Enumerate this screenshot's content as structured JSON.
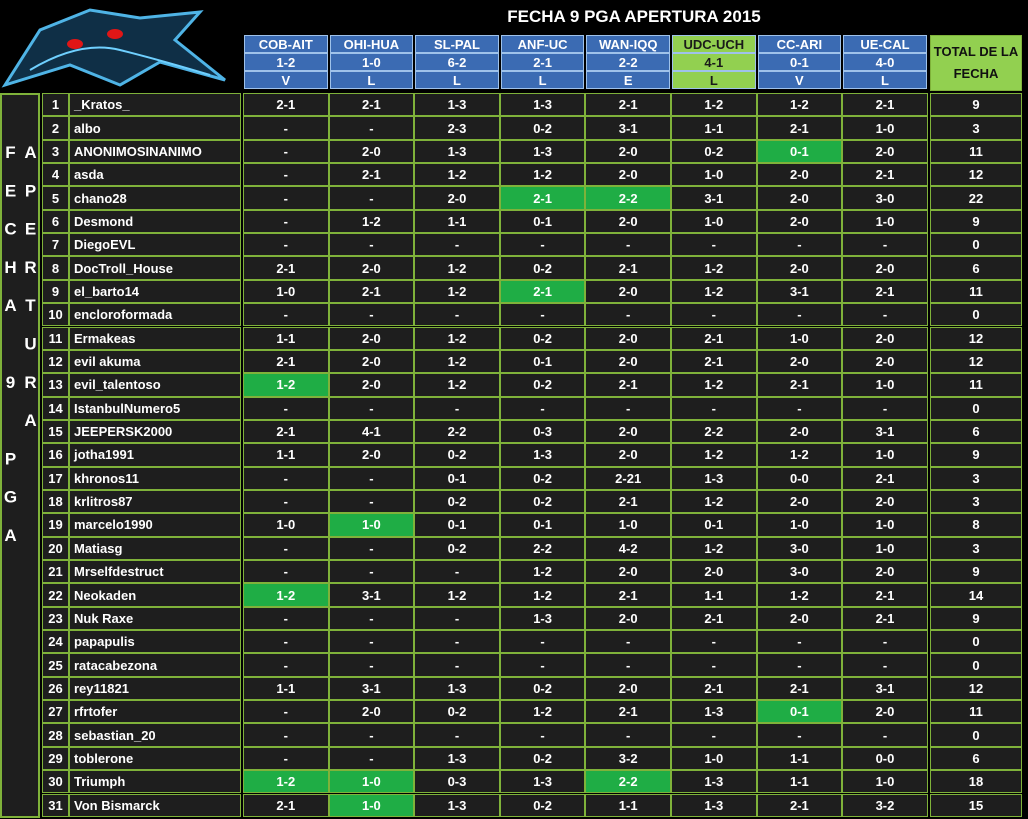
{
  "title": "FECHA 9 PGA APERTURA 2015",
  "side_label": "FECHA 9 PGA APERTURA",
  "total_header": "TOTAL DE LA FECHA",
  "matches": [
    {
      "name": "COB-AIT",
      "score": "1-2",
      "result": "V"
    },
    {
      "name": "OHI-HUA",
      "score": "1-0",
      "result": "L"
    },
    {
      "name": "SL-PAL",
      "score": "6-2",
      "result": "L"
    },
    {
      "name": "ANF-UC",
      "score": "2-1",
      "result": "L"
    },
    {
      "name": "WAN-IQQ",
      "score": "2-2",
      "result": "E"
    },
    {
      "name": "UDC-UCH",
      "score": "4-1",
      "result": "L",
      "highlight": true
    },
    {
      "name": "CC-ARI",
      "score": "0-1",
      "result": "V"
    },
    {
      "name": "UE-CAL",
      "score": "4-0",
      "result": "L"
    }
  ],
  "rows": [
    {
      "num": 1,
      "name": "_Kratos_",
      "picks": [
        "2-1",
        "2-1",
        "1-3",
        "1-3",
        "2-1",
        "1-2",
        "1-2",
        "2-1"
      ],
      "total": 9
    },
    {
      "num": 2,
      "name": "albo",
      "picks": [
        "-",
        "-",
        "2-3",
        "0-2",
        "3-1",
        "1-1",
        "2-1",
        "1-0"
      ],
      "total": 3
    },
    {
      "num": 3,
      "name": "ANONIMOSINANIMO",
      "picks": [
        "-",
        "2-0",
        "1-3",
        "1-3",
        "2-0",
        "0-2",
        "0-1",
        "2-0"
      ],
      "total": 11,
      "highlight": [
        6
      ]
    },
    {
      "num": 4,
      "name": "asda",
      "picks": [
        "-",
        "2-1",
        "1-2",
        "1-2",
        "2-0",
        "1-0",
        "2-0",
        "2-1"
      ],
      "total": 12
    },
    {
      "num": 5,
      "name": "chano28",
      "picks": [
        "-",
        "-",
        "2-0",
        "2-1",
        "2-2",
        "3-1",
        "2-0",
        "3-0"
      ],
      "total": 22,
      "highlight": [
        3,
        4
      ]
    },
    {
      "num": 6,
      "name": "Desmond",
      "picks": [
        "-",
        "1-2",
        "1-1",
        "0-1",
        "2-0",
        "1-0",
        "2-0",
        "1-0"
      ],
      "total": 9
    },
    {
      "num": 7,
      "name": "DiegoEVL",
      "picks": [
        "-",
        "-",
        "-",
        "-",
        "-",
        "-",
        "-",
        "-"
      ],
      "total": 0
    },
    {
      "num": 8,
      "name": "DocTroll_House",
      "picks": [
        "2-1",
        "2-0",
        "1-2",
        "0-2",
        "2-1",
        "1-2",
        "2-0",
        "2-0"
      ],
      "total": 6
    },
    {
      "num": 9,
      "name": "el_barto14",
      "picks": [
        "1-0",
        "2-1",
        "1-2",
        "2-1",
        "2-0",
        "1-2",
        "3-1",
        "2-1"
      ],
      "total": 11,
      "highlight": [
        3
      ]
    },
    {
      "num": 10,
      "name": "encloroformada",
      "picks": [
        "-",
        "-",
        "-",
        "-",
        "-",
        "-",
        "-",
        "-"
      ],
      "total": 0
    },
    {
      "num": 11,
      "name": "Ermakeas",
      "picks": [
        "1-1",
        "2-0",
        "1-2",
        "0-2",
        "2-0",
        "2-1",
        "1-0",
        "2-0"
      ],
      "total": 12
    },
    {
      "num": 12,
      "name": "evil akuma",
      "picks": [
        "2-1",
        "2-0",
        "1-2",
        "0-1",
        "2-0",
        "2-1",
        "2-0",
        "2-0"
      ],
      "total": 12
    },
    {
      "num": 13,
      "name": "evil_talentoso",
      "picks": [
        "1-2",
        "2-0",
        "1-2",
        "0-2",
        "2-1",
        "1-2",
        "2-1",
        "1-0"
      ],
      "total": 11,
      "highlight": [
        0
      ]
    },
    {
      "num": 14,
      "name": "IstanbulNumero5",
      "picks": [
        "-",
        "-",
        "-",
        "-",
        "-",
        "-",
        "-",
        "-"
      ],
      "total": 0
    },
    {
      "num": 15,
      "name": "JEEPERSK2000",
      "picks": [
        "2-1",
        "4-1",
        "2-2",
        "0-3",
        "2-0",
        "2-2",
        "2-0",
        "3-1"
      ],
      "total": 6
    },
    {
      "num": 16,
      "name": "jotha1991",
      "picks": [
        "1-1",
        "2-0",
        "0-2",
        "1-3",
        "2-0",
        "1-2",
        "1-2",
        "1-0"
      ],
      "total": 9
    },
    {
      "num": 17,
      "name": "khronos11",
      "picks": [
        "-",
        "-",
        "0-1",
        "0-2",
        "2-21",
        "1-3",
        "0-0",
        "2-1"
      ],
      "total": 3
    },
    {
      "num": 18,
      "name": "krlitros87",
      "picks": [
        "-",
        "-",
        "0-2",
        "0-2",
        "2-1",
        "1-2",
        "2-0",
        "2-0"
      ],
      "total": 3
    },
    {
      "num": 19,
      "name": "marcelo1990",
      "picks": [
        "1-0",
        "1-0",
        "0-1",
        "0-1",
        "1-0",
        "0-1",
        "1-0",
        "1-0"
      ],
      "total": 8,
      "highlight": [
        1
      ]
    },
    {
      "num": 20,
      "name": "Matiasg",
      "picks": [
        "-",
        "-",
        "0-2",
        "2-2",
        "4-2",
        "1-2",
        "3-0",
        "1-0"
      ],
      "total": 3
    },
    {
      "num": 21,
      "name": "Mrselfdestruct",
      "picks": [
        "-",
        "-",
        "-",
        "1-2",
        "2-0",
        "2-0",
        "3-0",
        "2-0"
      ],
      "total": 9
    },
    {
      "num": 22,
      "name": "Neokaden",
      "picks": [
        "1-2",
        "3-1",
        "1-2",
        "1-2",
        "2-1",
        "1-1",
        "1-2",
        "2-1"
      ],
      "total": 14,
      "highlight": [
        0
      ]
    },
    {
      "num": 23,
      "name": "Nuk Raxe",
      "picks": [
        "-",
        "-",
        "-",
        "1-3",
        "2-0",
        "2-1",
        "2-0",
        "2-1"
      ],
      "total": 9
    },
    {
      "num": 24,
      "name": "papapulis",
      "picks": [
        "-",
        "-",
        "-",
        "-",
        "-",
        "-",
        "-",
        "-"
      ],
      "total": 0
    },
    {
      "num": 25,
      "name": "ratacabezona",
      "picks": [
        "-",
        "-",
        "-",
        "-",
        "-",
        "-",
        "-",
        "-"
      ],
      "total": 0
    },
    {
      "num": 26,
      "name": "rey11821",
      "picks": [
        "1-1",
        "3-1",
        "1-3",
        "0-2",
        "2-0",
        "2-1",
        "2-1",
        "3-1"
      ],
      "total": 12
    },
    {
      "num": 27,
      "name": "rfrtofer",
      "picks": [
        "-",
        "2-0",
        "0-2",
        "1-2",
        "2-1",
        "1-3",
        "0-1",
        "2-0"
      ],
      "total": 11,
      "highlight": [
        6
      ]
    },
    {
      "num": 28,
      "name": "sebastian_20",
      "picks": [
        "-",
        "-",
        "-",
        "-",
        "-",
        "-",
        "-",
        "-"
      ],
      "total": 0
    },
    {
      "num": 29,
      "name": "toblerone",
      "picks": [
        "-",
        "-",
        "1-3",
        "0-2",
        "3-2",
        "1-0",
        "1-1",
        "0-0"
      ],
      "total": 6
    },
    {
      "num": 30,
      "name": "Triumph",
      "picks": [
        "1-2",
        "1-0",
        "0-3",
        "1-3",
        "2-2",
        "1-3",
        "1-1",
        "1-0"
      ],
      "total": 18,
      "highlight": [
        0,
        1,
        4
      ]
    },
    {
      "num": 31,
      "name": "Von Bismarck",
      "picks": [
        "2-1",
        "1-0",
        "1-3",
        "0-2",
        "1-1",
        "1-3",
        "2-1",
        "3-2"
      ],
      "total": 15,
      "highlight": [
        1
      ]
    }
  ]
}
